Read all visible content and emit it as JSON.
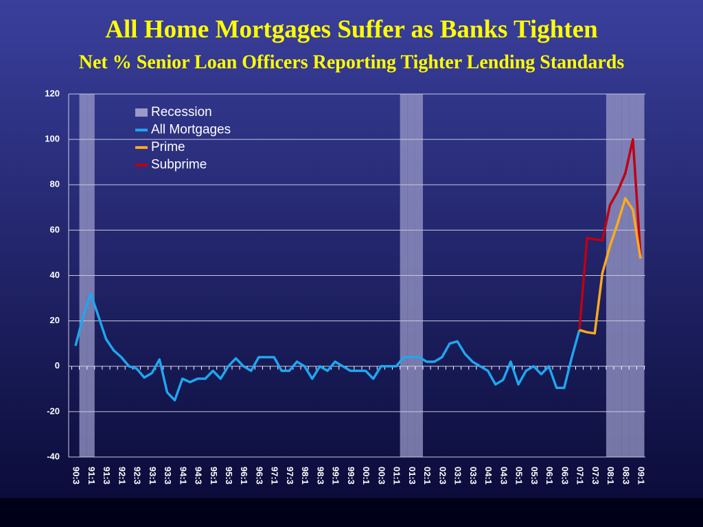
{
  "chart_data": {
    "type": "line",
    "title": "All Home Mortgages Suffer as Banks Tighten",
    "subtitle": "Net % Senior Loan Officers Reporting Tighter Lending Standards",
    "categories": [
      "90:3",
      null,
      "91:1",
      null,
      "91:3",
      null,
      "92:1",
      null,
      "92:3",
      null,
      "93:1",
      null,
      "93:3",
      null,
      "94:1",
      null,
      "94:3",
      null,
      "95:1",
      null,
      "95:3",
      null,
      "96:1",
      null,
      "96:3",
      null,
      "97:1",
      null,
      "97:3",
      null,
      "98:1",
      null,
      "98:3",
      null,
      "99:1",
      null,
      "99:3",
      null,
      "00:1",
      null,
      "00:3",
      null,
      "01:1",
      null,
      "01:3",
      null,
      "02:1",
      null,
      "02:3",
      null,
      "03:1",
      null,
      "03:3",
      null,
      "04:1",
      null,
      "04:3",
      null,
      "05:1",
      null,
      "05:3",
      null,
      "06:1",
      null,
      "06:3",
      null,
      "07:1",
      null,
      "07:3",
      null,
      "08:1",
      null,
      "08:3",
      null,
      "09:1"
    ],
    "series": [
      {
        "name": "Recession",
        "type": "bar",
        "color": "#9a9ac8",
        "values": [
          null,
          120,
          120,
          null,
          null,
          null,
          null,
          null,
          null,
          null,
          null,
          null,
          null,
          null,
          null,
          null,
          null,
          null,
          null,
          null,
          null,
          null,
          null,
          null,
          null,
          null,
          null,
          null,
          null,
          null,
          null,
          null,
          null,
          null,
          null,
          null,
          null,
          null,
          null,
          null,
          null,
          null,
          null,
          120,
          120,
          120,
          null,
          null,
          null,
          null,
          null,
          null,
          null,
          null,
          null,
          null,
          null,
          null,
          null,
          null,
          null,
          null,
          null,
          null,
          null,
          null,
          null,
          null,
          null,
          null,
          120,
          120,
          120,
          120,
          120
        ]
      },
      {
        "name": "All Mortgages",
        "type": "line",
        "color": "#1ea7f0",
        "values": [
          9,
          22,
          32,
          22,
          12,
          7,
          4,
          0,
          -1,
          -5,
          -3,
          3,
          -11.5,
          -15,
          -5.5,
          -7,
          -5.5,
          -5.5,
          -2,
          -5.5,
          0,
          3.5,
          0,
          -2,
          4,
          4,
          4,
          -2,
          -2,
          2,
          0,
          -5.5,
          0,
          -2,
          2,
          0,
          -2,
          -2,
          -2,
          -5.5,
          0,
          0,
          0,
          4,
          4,
          4,
          2,
          2,
          4,
          10,
          11,
          5.5,
          2,
          0,
          -2,
          -8,
          -6,
          2,
          -8,
          -2,
          0,
          -3.5,
          0,
          -9.5,
          -9.5,
          4,
          16,
          null,
          null,
          null,
          null,
          null,
          null,
          null,
          null
        ]
      },
      {
        "name": "Prime",
        "type": "line",
        "color": "#ffaa1e",
        "values": [
          null,
          null,
          null,
          null,
          null,
          null,
          null,
          null,
          null,
          null,
          null,
          null,
          null,
          null,
          null,
          null,
          null,
          null,
          null,
          null,
          null,
          null,
          null,
          null,
          null,
          null,
          null,
          null,
          null,
          null,
          null,
          null,
          null,
          null,
          null,
          null,
          null,
          null,
          null,
          null,
          null,
          null,
          null,
          null,
          null,
          null,
          null,
          null,
          null,
          null,
          null,
          null,
          null,
          null,
          null,
          null,
          null,
          null,
          null,
          null,
          null,
          null,
          null,
          null,
          null,
          null,
          16,
          15,
          14.5,
          41,
          53,
          63,
          74,
          69,
          47.5
        ]
      },
      {
        "name": "Subprime",
        "type": "line",
        "color": "#c00010",
        "values": [
          null,
          null,
          null,
          null,
          null,
          null,
          null,
          null,
          null,
          null,
          null,
          null,
          null,
          null,
          null,
          null,
          null,
          null,
          null,
          null,
          null,
          null,
          null,
          null,
          null,
          null,
          null,
          null,
          null,
          null,
          null,
          null,
          null,
          null,
          null,
          null,
          null,
          null,
          null,
          null,
          null,
          null,
          null,
          null,
          null,
          null,
          null,
          null,
          null,
          null,
          null,
          null,
          null,
          null,
          null,
          null,
          null,
          null,
          null,
          null,
          null,
          null,
          null,
          null,
          null,
          null,
          16,
          56.5,
          56,
          55.5,
          71,
          77,
          85,
          100,
          49
        ]
      }
    ],
    "ylim": [
      -40,
      120
    ],
    "yticks": [
      -40,
      -20,
      0,
      20,
      40,
      60,
      80,
      100,
      120
    ],
    "grid": true,
    "legend": "top-left"
  }
}
